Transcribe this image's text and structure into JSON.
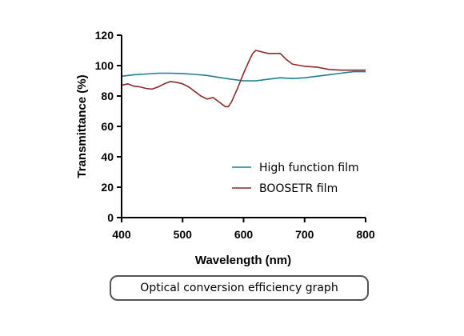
{
  "caption": "Optical conversion efficiency graph",
  "chart_data": {
    "type": "line",
    "title": "",
    "xlabel": "Wavelength (nm)",
    "ylabel": "Transmittance (%)",
    "xlim": [
      400,
      800
    ],
    "ylim": [
      0,
      120
    ],
    "xticks": [
      "400",
      "500",
      "600",
      "700",
      "800"
    ],
    "yticks": [
      "0",
      "20",
      "40",
      "60",
      "80",
      "100",
      "120"
    ],
    "xtick_values": [
      400,
      500,
      600,
      700,
      800
    ],
    "ytick_values": [
      0,
      20,
      40,
      60,
      80,
      100,
      120
    ],
    "grid": false,
    "legend_position": "lower-right",
    "series": [
      {
        "name": "High function film",
        "color": "#1f7f8f",
        "x": [
          400,
          420,
          440,
          460,
          480,
          500,
          520,
          540,
          560,
          580,
          600,
          620,
          640,
          660,
          680,
          700,
          720,
          740,
          760,
          780,
          800
        ],
        "y": [
          93,
          94,
          94.5,
          95,
          95,
          94.8,
          94.2,
          93.5,
          92.2,
          91,
          90,
          90,
          91,
          92,
          91.5,
          92,
          93,
          94,
          95,
          96,
          96
        ]
      },
      {
        "name": "BOOSETR film",
        "color": "#8b2a2a",
        "x": [
          400,
          410,
          420,
          430,
          440,
          450,
          460,
          470,
          480,
          490,
          500,
          510,
          520,
          530,
          540,
          550,
          560,
          570,
          575,
          580,
          590,
          600,
          610,
          615,
          620,
          630,
          640,
          650,
          660,
          670,
          680,
          700,
          720,
          740,
          760,
          780,
          800
        ],
        "y": [
          87,
          88,
          86.5,
          86,
          85,
          84.5,
          86,
          88,
          89.5,
          89,
          88,
          86,
          83,
          80,
          78,
          79,
          76,
          73,
          73,
          76,
          85,
          95,
          104,
          108,
          110,
          109,
          108,
          108,
          108,
          104,
          101,
          99.5,
          99,
          97.5,
          97,
          97,
          97
        ]
      }
    ]
  }
}
